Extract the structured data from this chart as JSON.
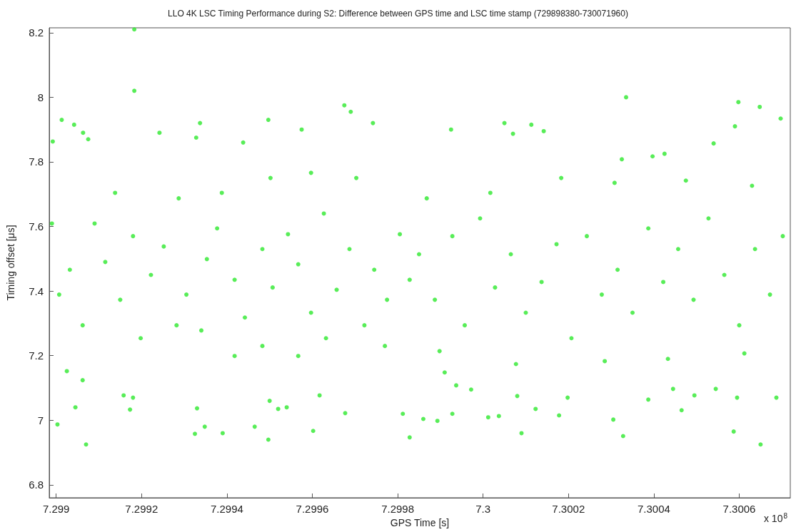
{
  "chart_data": {
    "type": "scatter",
    "title": "LLO 4K LSC Timing Performance during S2: Difference between GPS time and LSC time stamp (729898380-730071960)",
    "xlabel": "GPS Time [s]",
    "ylabel": "Timing offset [μs]",
    "annotations": [
      "x 10$^{8}$"
    ],
    "xlim": [
      7.2989838,
      7.3007196
    ],
    "xticks": [
      7.299,
      7.2992,
      7.2994,
      7.2996,
      7.2998,
      7.3,
      7.3002,
      7.3004,
      7.3006
    ],
    "ylim": [
      6.76,
      8.215
    ],
    "yticks": [
      6.8,
      7,
      7.2,
      7.4,
      7.6,
      7.8,
      8,
      8.2
    ],
    "grid": false,
    "marker": "circle",
    "x": [
      7.299183,
      7.299183,
      7.300335,
      7.300598,
      7.300648,
      7.299675,
      7.29969,
      7.299013,
      7.299042,
      7.299063,
      7.299075,
      7.298992,
      7.299337,
      7.299328,
      7.299242,
      7.299497,
      7.299575,
      7.299742,
      7.299438,
      7.30005,
      7.300113,
      7.300142,
      7.299925,
      7.30007,
      7.300697,
      7.30059,
      7.30054,
      7.300425,
      7.300397,
      7.300325,
      7.29907,
      7.299003,
      7.299045,
      7.299173,
      7.29918,
      7.299325,
      7.299348,
      7.29939,
      7.299465,
      7.299497,
      7.299602,
      7.299677,
      7.299812,
      7.299828,
      7.29952,
      7.29954,
      7.299617,
      7.2995,
      7.29933,
      7.299025,
      7.299062,
      7.299158,
      7.29986,
      7.299893,
      7.299928,
      7.30009,
      7.300178,
      7.300305,
      7.300328,
      7.300465,
      7.300587,
      7.30065,
      7.300687,
      7.300595,
      7.300495,
      7.300387,
      7.300445,
      7.300012,
      7.300037,
      7.30008,
      7.300123,
      7.300198,
      7.29991,
      7.299937,
      7.299972,
      7.300545,
      7.299032,
      7.299007,
      7.29909,
      7.299115,
      7.29915,
      7.29918,
      7.299222,
      7.299252,
      7.299282,
      7.299305,
      7.299353,
      7.299377,
      7.299418,
      7.299442,
      7.299483,
      7.299507,
      7.299543,
      7.299567,
      7.299597,
      7.299627,
      7.299657,
      7.299687,
      7.299722,
      7.299745,
      7.299775,
      7.299805,
      7.299828,
      7.299062,
      7.299138,
      7.299287,
      7.299388,
      7.299502,
      7.299597,
      7.299703,
      7.29899,
      7.299198,
      7.29934,
      7.299483,
      7.299632,
      7.29977,
      7.299418,
      7.299567,
      7.29985,
      7.299887,
      7.299928,
      7.299957,
      7.299993,
      7.300028,
      7.300065,
      7.3001,
      7.300137,
      7.300172,
      7.300207,
      7.300243,
      7.300278,
      7.300315,
      7.30035,
      7.300387,
      7.300422,
      7.300457,
      7.300493,
      7.300528,
      7.300565,
      7.3006,
      7.300637,
      7.300672,
      7.300702,
      7.299868,
      7.300017,
      7.300183,
      7.300308,
      7.300475,
      7.30063,
      7.299898,
      7.300077,
      7.300285,
      7.300433,
      7.300612
    ],
    "series": [
      {
        "color": "#2ee82e",
        "values": [
          8.21,
          8.02,
          8.0,
          7.985,
          7.97,
          7.975,
          7.955,
          7.93,
          7.915,
          7.89,
          7.87,
          7.863,
          7.92,
          7.875,
          7.89,
          7.93,
          7.9,
          7.92,
          7.86,
          7.92,
          7.915,
          7.895,
          7.9,
          7.887,
          7.934,
          7.91,
          7.857,
          7.825,
          7.817,
          7.808,
          6.925,
          6.987,
          7.04,
          7.033,
          7.07,
          6.958,
          6.98,
          6.96,
          6.98,
          6.94,
          6.967,
          7.022,
          7.02,
          6.947,
          7.035,
          7.04,
          7.077,
          7.06,
          7.037,
          7.152,
          7.124,
          7.077,
          7.004,
          6.998,
          7.02,
          6.96,
          7.015,
          7.002,
          6.951,
          7.031,
          6.965,
          6.925,
          7.07,
          7.07,
          7.077,
          7.064,
          7.097,
          7.009,
          7.013,
          7.075,
          7.035,
          7.07,
          7.148,
          7.108,
          7.095,
          7.097,
          7.466,
          7.389,
          7.609,
          7.49,
          7.373,
          7.57,
          7.45,
          7.538,
          7.294,
          7.389,
          7.499,
          7.594,
          7.435,
          7.318,
          7.53,
          7.411,
          7.576,
          7.483,
          7.333,
          7.64,
          7.404,
          7.53,
          7.294,
          7.466,
          7.373,
          7.576,
          7.435,
          7.294,
          7.704,
          7.687,
          7.704,
          7.75,
          7.766,
          7.75,
          7.609,
          7.254,
          7.278,
          7.23,
          7.254,
          7.23,
          7.199,
          7.199,
          7.514,
          7.373,
          7.57,
          7.294,
          7.625,
          7.411,
          7.514,
          7.333,
          7.428,
          7.545,
          7.254,
          7.57,
          7.389,
          7.466,
          7.333,
          7.594,
          7.428,
          7.53,
          7.373,
          7.625,
          7.45,
          7.294,
          7.53,
          7.389,
          7.57,
          7.687,
          7.704,
          7.75,
          7.735,
          7.742,
          7.726,
          7.214,
          7.174,
          7.183,
          7.19,
          7.207
        ]
      }
    ]
  }
}
